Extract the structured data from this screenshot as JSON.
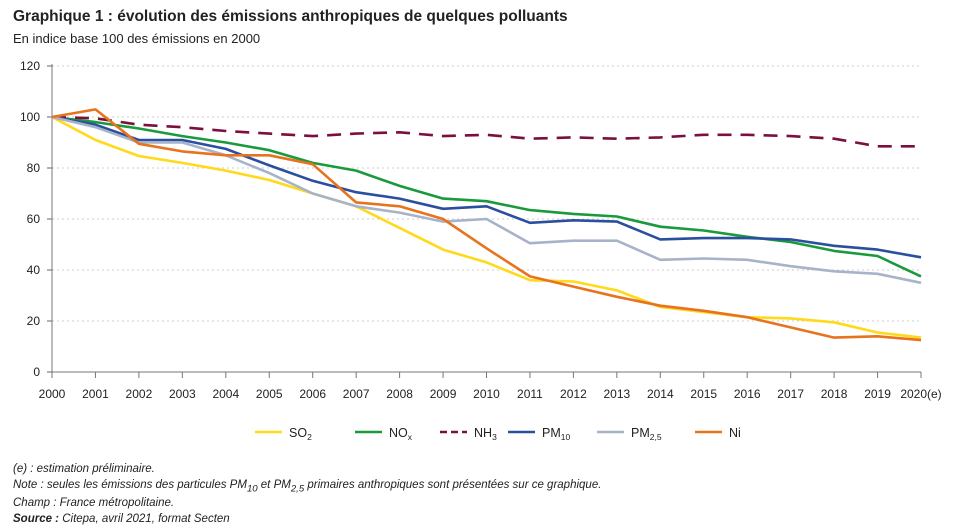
{
  "chart_data": {
    "type": "line",
    "title": "Graphique 1 : évolution des émissions anthropiques de quelques polluants",
    "subtitle": "En indice base 100 des émissions en 2000",
    "xlabel": "",
    "ylabel": "",
    "categories": [
      "2000",
      "2001",
      "2002",
      "2003",
      "2004",
      "2005",
      "2006",
      "2007",
      "2008",
      "2009",
      "2010",
      "2011",
      "2012",
      "2013",
      "2014",
      "2015",
      "2016",
      "2017",
      "2018",
      "2019",
      "2020(e)"
    ],
    "ylim": [
      0,
      120
    ],
    "yticks": [
      "0",
      "20",
      "40",
      "60",
      "80",
      "100",
      "120"
    ],
    "grid": true,
    "legend": "bottom",
    "series": [
      {
        "name": "SO",
        "sub": "2",
        "color": "#FFD91A",
        "dash": false,
        "values": [
          100,
          91,
          84.7,
          82,
          79,
          75.3,
          70,
          65,
          56.5,
          48,
          43,
          36,
          35.5,
          32,
          25.5,
          23.5,
          21.5,
          21,
          19.5,
          15.5,
          13.5
        ]
      },
      {
        "name": "NO",
        "sub": "x",
        "color": "#1A9A3C",
        "dash": false,
        "values": [
          100,
          98,
          95.5,
          92.5,
          90,
          87,
          82,
          79,
          73,
          68,
          67,
          63.5,
          62,
          61,
          57,
          55.5,
          53,
          51,
          47.5,
          45.5,
          37.5
        ]
      },
      {
        "name": "NH",
        "sub": "3",
        "color": "#7B1040",
        "dash": true,
        "values": [
          100,
          99.5,
          97,
          96,
          94.5,
          93.5,
          92.5,
          93.5,
          94,
          92.5,
          93,
          91.5,
          92,
          91.5,
          92,
          93,
          93,
          92.5,
          91.5,
          88.5,
          88.5
        ]
      },
      {
        "name": "PM",
        "sub": "10",
        "color": "#2A4F9E",
        "dash": false,
        "values": [
          100,
          97,
          91,
          91,
          87.5,
          81,
          75,
          70.5,
          68,
          64,
          65,
          58.5,
          59.5,
          59,
          52,
          52.5,
          52.5,
          52,
          49.5,
          48,
          45
        ]
      },
      {
        "name": "PM",
        "sub": "2,5",
        "color": "#A6B3C9",
        "dash": false,
        "values": [
          100,
          96,
          90,
          90,
          85,
          78,
          70,
          65,
          62.5,
          59,
          60,
          50.5,
          51.5,
          51.5,
          44,
          44.5,
          44,
          41.5,
          39.5,
          38.5,
          35
        ]
      },
      {
        "name": "Ni",
        "sub": "",
        "color": "#E8731F",
        "dash": false,
        "values": [
          100,
          103,
          89.5,
          86.5,
          85,
          85,
          81.5,
          66.5,
          65,
          60,
          48.5,
          37.5,
          33.5,
          29.5,
          26,
          24,
          21.5,
          17.5,
          13.5,
          14,
          12.5
        ]
      }
    ]
  },
  "notes": {
    "estimation": "(e) : estimation préliminaire.",
    "note_a": "Note : seules les émissions des particules PM",
    "note_sub1": "10",
    "note_b": " et PM",
    "note_sub2": "2,5",
    "note_c": " primaires anthropiques sont présentées sur ce graphique.",
    "champ": "Champ : France métropolitaine.",
    "source_label": "Source :",
    "source_text": " Citepa, avril 2021, format Secten"
  }
}
